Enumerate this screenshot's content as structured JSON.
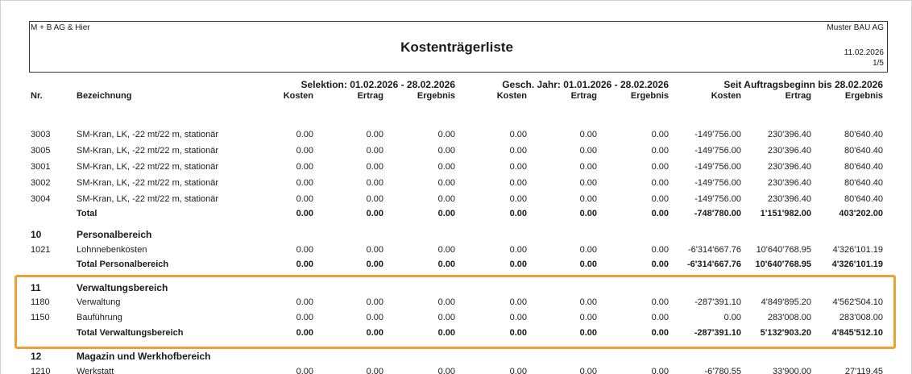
{
  "header": {
    "company_left": "M + B AG & Hier",
    "company_right": "Muster BAU AG",
    "title": "Kostenträgerliste",
    "date": "11.02.2026",
    "page": "1/5"
  },
  "columns": {
    "nr": "Nr.",
    "bezeichnung": "Bezeichnung",
    "groups": [
      "Selektion: 01.02.2026 - 28.02.2026",
      "Gesch. Jahr: 01.01.2026 - 28.02.2026",
      "Seit Auftragsbeginn bis 28.02.2026"
    ],
    "sub": [
      "Kosten",
      "Ertrag",
      "Ergebnis",
      "Kosten",
      "Ertrag",
      "Ergebnis",
      "Kosten",
      "Ertrag",
      "Ergebnis"
    ]
  },
  "rows": [
    {
      "kind": "detail",
      "nr": "3003",
      "label": "SM-Kran, LK, -22 mt/22 m, stationär",
      "values": [
        "0.00",
        "0.00",
        "0.00",
        "0.00",
        "0.00",
        "0.00",
        "-149'756.00",
        "230'396.40",
        "80'640.40"
      ]
    },
    {
      "kind": "detail",
      "nr": "3005",
      "label": "SM-Kran, LK, -22 mt/22 m, stationär",
      "values": [
        "0.00",
        "0.00",
        "0.00",
        "0.00",
        "0.00",
        "0.00",
        "-149'756.00",
        "230'396.40",
        "80'640.40"
      ]
    },
    {
      "kind": "detail",
      "nr": "3001",
      "label": "SM-Kran, LK, -22 mt/22 m, stationär",
      "values": [
        "0.00",
        "0.00",
        "0.00",
        "0.00",
        "0.00",
        "0.00",
        "-149'756.00",
        "230'396.40",
        "80'640.40"
      ]
    },
    {
      "kind": "detail",
      "nr": "3002",
      "label": "SM-Kran, LK, -22 mt/22 m, stationär",
      "values": [
        "0.00",
        "0.00",
        "0.00",
        "0.00",
        "0.00",
        "0.00",
        "-149'756.00",
        "230'396.40",
        "80'640.40"
      ]
    },
    {
      "kind": "detail",
      "nr": "3004",
      "label": "SM-Kran, LK, -22 mt/22 m, stationär",
      "values": [
        "0.00",
        "0.00",
        "0.00",
        "0.00",
        "0.00",
        "0.00",
        "-149'756.00",
        "230'396.40",
        "80'640.40"
      ]
    },
    {
      "kind": "total",
      "label": "Total",
      "values": [
        "0.00",
        "0.00",
        "0.00",
        "0.00",
        "0.00",
        "0.00",
        "-748'780.00",
        "1'151'982.00",
        "403'202.00"
      ]
    },
    {
      "kind": "group",
      "nr": "10",
      "label": "Personalbereich"
    },
    {
      "kind": "detail",
      "nr": "1021",
      "label": "Lohnnebenkosten",
      "values": [
        "0.00",
        "0.00",
        "0.00",
        "0.00",
        "0.00",
        "0.00",
        "-6'314'667.76",
        "10'640'768.95",
        "4'326'101.19"
      ]
    },
    {
      "kind": "total",
      "label": "Total Personalbereich",
      "values": [
        "0.00",
        "0.00",
        "0.00",
        "0.00",
        "0.00",
        "0.00",
        "-6'314'667.76",
        "10'640'768.95",
        "4'326'101.19"
      ]
    },
    {
      "kind": "group",
      "nr": "11",
      "label": "Verwaltungsbereich"
    },
    {
      "kind": "detail",
      "nr": "1180",
      "label": "Verwaltung",
      "values": [
        "0.00",
        "0.00",
        "0.00",
        "0.00",
        "0.00",
        "0.00",
        "-287'391.10",
        "4'849'895.20",
        "4'562'504.10"
      ]
    },
    {
      "kind": "detail",
      "nr": "1150",
      "label": "Bauführung",
      "values": [
        "0.00",
        "0.00",
        "0.00",
        "0.00",
        "0.00",
        "0.00",
        "0.00",
        "283'008.00",
        "283'008.00"
      ]
    },
    {
      "kind": "total",
      "label": "Total Verwaltungsbereich",
      "values": [
        "0.00",
        "0.00",
        "0.00",
        "0.00",
        "0.00",
        "0.00",
        "-287'391.10",
        "5'132'903.20",
        "4'845'512.10"
      ]
    },
    {
      "kind": "group",
      "nr": "12",
      "label": "Magazin und Werkhofbereich"
    },
    {
      "kind": "detail",
      "nr": "1210",
      "label": "Werkstatt",
      "values": [
        "0.00",
        "0.00",
        "0.00",
        "0.00",
        "0.00",
        "0.00",
        "-6'780.55",
        "33'900.00",
        "27'119.45"
      ]
    }
  ]
}
